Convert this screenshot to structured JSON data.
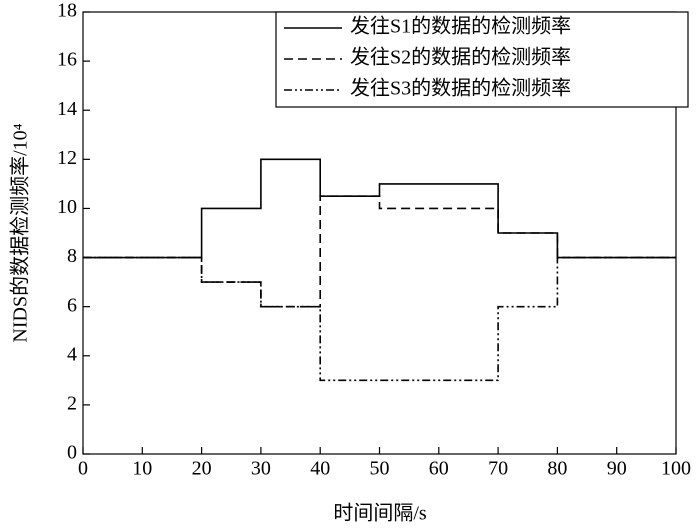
{
  "chart_data": {
    "type": "step",
    "x_label": "时间间隔/s",
    "y_label": "NIDS的数据检测频率/10⁴",
    "x": [
      0,
      20,
      30,
      40,
      50,
      70,
      80,
      100
    ],
    "series": [
      {
        "name": "发往S1的数据的检测频率",
        "color": "#000000",
        "dash": "solid",
        "values": [
          8,
          10,
          12,
          10.5,
          11,
          9,
          8,
          8
        ]
      },
      {
        "name": "发往S2的数据的检测频率",
        "color": "#000000",
        "dash": "dashed",
        "values": [
          8,
          7,
          6,
          10.5,
          10,
          9,
          8,
          8
        ]
      },
      {
        "name": "发往S3的数据的检测频率",
        "color": "#000000",
        "dash": "dashdotdot",
        "values": [
          8,
          7,
          6,
          3,
          3,
          6,
          8,
          8
        ]
      }
    ],
    "xlim": [
      0,
      100
    ],
    "xticks": [
      0,
      10,
      20,
      30,
      40,
      50,
      60,
      70,
      80,
      90,
      100
    ],
    "ylim": [
      0,
      18
    ],
    "yticks": [
      0,
      2,
      4,
      6,
      8,
      10,
      12,
      14,
      16,
      18
    ],
    "legend": "upper-right"
  }
}
